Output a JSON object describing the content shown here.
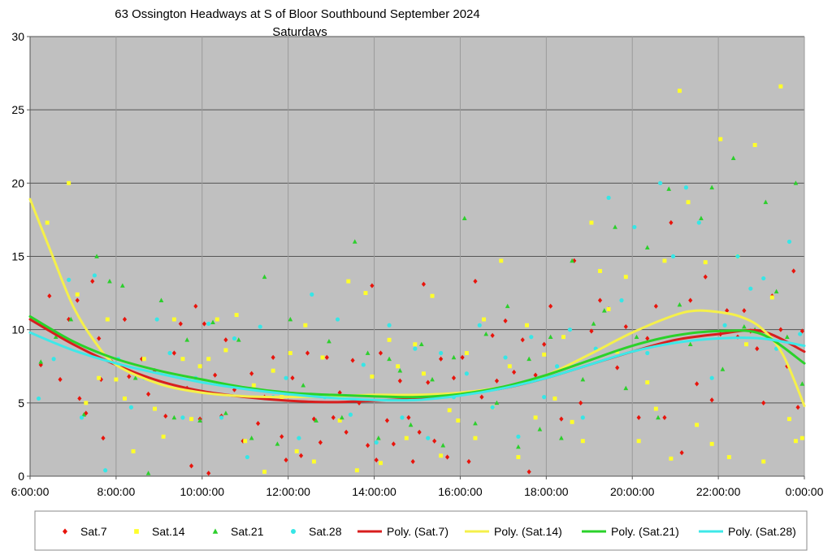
{
  "chart_data": {
    "type": "scatter",
    "title": "63 Ossington Headways at S of Bloor Southbound September 2024",
    "subtitle": "Saturdays",
    "xlabel": "",
    "ylabel": "",
    "x_unit": "hours since 0:00",
    "xlim": [
      6,
      24
    ],
    "ylim": [
      0,
      30
    ],
    "x_ticks": [
      6,
      8,
      10,
      12,
      14,
      16,
      18,
      20,
      22,
      24
    ],
    "x_tick_labels": [
      "6:00:00",
      "8:00:00",
      "10:00:00",
      "12:00:00",
      "14:00:00",
      "16:00:00",
      "18:00:00",
      "20:00:00",
      "22:00:00",
      "0:00:00"
    ],
    "y_ticks": [
      0,
      5,
      10,
      15,
      20,
      25,
      30
    ],
    "y_tick_labels": [
      "0",
      "5",
      "10",
      "15",
      "20",
      "25",
      "30"
    ],
    "grid": true,
    "legend_position": "bottom",
    "plot_background": "#c0c0c0",
    "series": [
      {
        "name": "Sat.7",
        "color": "#e8140c",
        "marker": "diamond",
        "x": [
          6.25,
          6.45,
          6.7,
          6.9,
          7.1,
          7.15,
          7.3,
          7.45,
          7.6,
          7.65,
          7.7,
          7.9,
          8.2,
          8.3,
          8.6,
          8.75,
          8.9,
          9.15,
          9.35,
          9.5,
          9.65,
          9.75,
          9.85,
          9.95,
          10.05,
          10.15,
          10.3,
          10.45,
          10.55,
          10.75,
          10.95,
          11.15,
          11.3,
          11.45,
          11.65,
          11.85,
          11.95,
          12.1,
          12.3,
          12.45,
          12.6,
          12.75,
          12.9,
          13.05,
          13.2,
          13.35,
          13.5,
          13.65,
          13.85,
          13.95,
          14.05,
          14.15,
          14.3,
          14.45,
          14.6,
          14.8,
          14.9,
          15.05,
          15.15,
          15.25,
          15.4,
          15.55,
          15.7,
          15.85,
          16.05,
          16.2,
          16.35,
          16.5,
          16.75,
          16.85,
          17.05,
          17.25,
          17.45,
          17.6,
          17.75,
          17.95,
          18.1,
          18.35,
          18.65,
          18.8,
          19.05,
          19.25,
          19.45,
          19.65,
          19.85,
          20.15,
          20.35,
          20.55,
          20.75,
          20.9,
          21.15,
          21.35,
          21.5,
          21.7,
          21.85,
          22.05,
          22.2,
          22.45,
          22.6,
          22.75,
          22.9,
          23.05,
          23.25,
          23.45,
          23.6,
          23.75,
          23.85,
          23.95
        ],
        "y": [
          7.6,
          12.3,
          6.6,
          10.7,
          12.0,
          5.3,
          4.3,
          13.3,
          9.4,
          6.6,
          2.6,
          7.8,
          10.7,
          6.8,
          8.0,
          5.6,
          7.2,
          4.1,
          8.4,
          10.4,
          6.0,
          0.7,
          11.6,
          3.9,
          10.4,
          0.2,
          6.9,
          4.1,
          9.3,
          5.9,
          2.4,
          7.0,
          3.6,
          5.4,
          8.1,
          2.7,
          1.1,
          6.7,
          1.4,
          8.4,
          3.9,
          2.3,
          8.1,
          4.0,
          5.7,
          3.0,
          7.9,
          5.0,
          2.1,
          13.0,
          1.1,
          8.4,
          3.8,
          2.2,
          6.5,
          4.0,
          1.0,
          3.0,
          13.1,
          6.4,
          2.4,
          8.0,
          1.3,
          6.7,
          8.1,
          1.0,
          13.3,
          5.4,
          9.6,
          6.5,
          10.6,
          7.1,
          9.3,
          0.3,
          6.9,
          9.0,
          11.6,
          3.9,
          14.7,
          5.0,
          9.9,
          12.0,
          11.4,
          7.4,
          10.2,
          4.0,
          9.4,
          11.6,
          4.0,
          17.3,
          1.6,
          12.0,
          6.3,
          13.6,
          5.2,
          9.7,
          11.3,
          9.5,
          11.3,
          9.9,
          8.7,
          5.0,
          12.3,
          10.0,
          7.5,
          14.0,
          4.7,
          9.9
        ]
      },
      {
        "name": "Sat.14",
        "color": "#ffff2a",
        "marker": "square",
        "x": [
          6.4,
          6.9,
          7.1,
          7.3,
          7.6,
          7.8,
          8.0,
          8.2,
          8.4,
          8.65,
          8.9,
          9.1,
          9.35,
          9.55,
          9.75,
          9.95,
          10.15,
          10.35,
          10.55,
          10.8,
          11.0,
          11.2,
          11.45,
          11.65,
          11.85,
          12.05,
          12.2,
          12.4,
          12.6,
          12.8,
          13.0,
          13.2,
          13.4,
          13.6,
          13.8,
          13.95,
          14.15,
          14.35,
          14.55,
          14.75,
          14.95,
          15.15,
          15.35,
          15.55,
          15.75,
          15.95,
          16.15,
          16.35,
          16.55,
          16.75,
          16.95,
          17.15,
          17.35,
          17.55,
          17.75,
          17.95,
          18.2,
          18.4,
          18.6,
          18.85,
          19.05,
          19.25,
          19.45,
          19.65,
          19.85,
          20.15,
          20.35,
          20.55,
          20.75,
          20.9,
          21.1,
          21.3,
          21.5,
          21.7,
          21.85,
          22.05,
          22.25,
          22.45,
          22.65,
          22.85,
          23.05,
          23.25,
          23.45,
          23.65,
          23.8,
          23.95
        ],
        "y": [
          17.3,
          20.0,
          12.4,
          5.0,
          6.7,
          10.7,
          6.6,
          5.3,
          1.7,
          8.0,
          4.6,
          2.7,
          10.7,
          8.0,
          3.9,
          7.5,
          8.0,
          10.7,
          8.6,
          11.0,
          2.4,
          6.2,
          0.3,
          7.2,
          5.4,
          8.4,
          1.7,
          10.3,
          1.0,
          8.1,
          5.5,
          3.8,
          13.3,
          0.4,
          12.5,
          6.8,
          0.9,
          9.3,
          7.5,
          2.6,
          9.0,
          7.0,
          12.3,
          1.4,
          4.5,
          3.8,
          8.4,
          2.6,
          10.7,
          4.7,
          14.7,
          7.5,
          1.3,
          10.3,
          4.0,
          8.3,
          5.3,
          9.5,
          3.7,
          2.4,
          17.3,
          14.0,
          11.4,
          8.5,
          13.6,
          2.4,
          6.4,
          4.6,
          14.7,
          1.2,
          26.3,
          18.7,
          3.5,
          14.6,
          2.2,
          23.0,
          1.3,
          15.0,
          9.0,
          22.6,
          1.0,
          12.2,
          26.6,
          3.9,
          2.4,
          2.6
        ]
      },
      {
        "name": "Sat.21",
        "color": "#2ccf2c",
        "marker": "triangle",
        "x": [
          6.25,
          6.6,
          6.95,
          7.25,
          7.55,
          7.85,
          8.15,
          8.45,
          8.75,
          9.05,
          9.35,
          9.65,
          9.95,
          10.25,
          10.55,
          10.85,
          11.15,
          11.45,
          11.75,
          12.05,
          12.35,
          12.65,
          12.95,
          13.25,
          13.55,
          13.85,
          14.1,
          14.35,
          14.6,
          14.85,
          15.1,
          15.35,
          15.6,
          15.85,
          16.1,
          16.35,
          16.6,
          16.85,
          17.1,
          17.35,
          17.6,
          17.85,
          18.1,
          18.35,
          18.6,
          18.85,
          19.1,
          19.35,
          19.6,
          19.85,
          20.1,
          20.35,
          20.6,
          20.85,
          21.1,
          21.35,
          21.6,
          21.85,
          22.1,
          22.35,
          22.6,
          22.85,
          23.1,
          23.35,
          23.6,
          23.8,
          23.95
        ],
        "y": [
          7.8,
          9.5,
          10.7,
          4.2,
          15.0,
          13.3,
          13.0,
          6.7,
          0.2,
          12.0,
          4.0,
          9.3,
          3.8,
          10.5,
          4.3,
          9.3,
          2.6,
          13.6,
          2.2,
          10.7,
          6.2,
          3.8,
          9.2,
          4.0,
          16.0,
          8.4,
          2.6,
          8.0,
          7.2,
          3.5,
          9.0,
          6.6,
          2.1,
          8.1,
          17.6,
          3.6,
          9.7,
          5.0,
          11.6,
          2.0,
          8.0,
          3.2,
          9.5,
          2.6,
          14.7,
          6.6,
          10.4,
          11.3,
          17.0,
          6.0,
          9.5,
          15.6,
          4.0,
          19.6,
          11.7,
          9.0,
          17.6,
          19.7,
          7.3,
          21.7,
          10.2,
          10.0,
          18.7,
          12.6,
          9.5,
          20.0,
          6.3
        ]
      },
      {
        "name": "Sat.28",
        "color": "#36e6e6",
        "marker": "circle",
        "x": [
          6.2,
          6.55,
          6.9,
          7.2,
          7.5,
          7.75,
          8.05,
          8.35,
          8.65,
          8.95,
          9.25,
          9.55,
          9.85,
          10.15,
          10.45,
          10.75,
          11.05,
          11.35,
          11.65,
          11.95,
          12.25,
          12.55,
          12.85,
          13.15,
          13.45,
          13.75,
          14.05,
          14.35,
          14.65,
          14.95,
          15.25,
          15.55,
          15.85,
          16.15,
          16.45,
          16.75,
          17.05,
          17.35,
          17.65,
          17.95,
          18.25,
          18.55,
          18.85,
          19.15,
          19.45,
          19.75,
          20.05,
          20.35,
          20.65,
          20.95,
          21.25,
          21.55,
          21.85,
          22.15,
          22.45,
          22.75,
          23.05,
          23.35,
          23.65,
          23.9
        ],
        "y": [
          5.3,
          8.0,
          13.4,
          4.0,
          13.7,
          0.4,
          8.0,
          4.7,
          6.7,
          10.7,
          8.4,
          4.0,
          6.7,
          10.4,
          4.0,
          9.4,
          1.3,
          10.2,
          5.4,
          6.7,
          2.6,
          12.4,
          5.4,
          10.7,
          4.2,
          7.6,
          2.3,
          10.3,
          4.0,
          8.7,
          2.6,
          8.4,
          5.4,
          7.0,
          10.3,
          4.7,
          8.1,
          2.7,
          9.5,
          5.4,
          7.5,
          10.0,
          4.0,
          8.7,
          19.0,
          12.0,
          17.0,
          8.4,
          20.0,
          15.0,
          19.7,
          17.3,
          6.7,
          10.3,
          15.0,
          12.8,
          13.5,
          8.7,
          16.0,
          9.7
        ]
      }
    ],
    "trendlines": [
      {
        "name": "Poly. (Sat.7)",
        "color": "#d81e1e",
        "x": [
          6,
          7,
          8,
          9,
          10,
          11,
          12,
          13,
          14,
          15,
          16,
          17,
          18,
          19,
          20,
          21,
          22,
          23,
          24
        ],
        "y": [
          10.7,
          9.0,
          7.6,
          6.5,
          5.8,
          5.4,
          5.15,
          5.05,
          5.15,
          5.3,
          5.6,
          6.0,
          6.7,
          7.6,
          8.5,
          9.3,
          9.7,
          9.9,
          8.5
        ]
      },
      {
        "name": "Poly. (Sat.14)",
        "color": "#f5f04a",
        "x": [
          6,
          6.5,
          7,
          7.5,
          8,
          9,
          10,
          11,
          12,
          13,
          14,
          15,
          16,
          17,
          18,
          19,
          20,
          21,
          21.5,
          22,
          22.5,
          23,
          23.5,
          24
        ],
        "y": [
          18.9,
          15.2,
          11.6,
          9.2,
          7.6,
          6.3,
          5.7,
          5.45,
          5.4,
          5.45,
          5.55,
          5.55,
          5.7,
          6.1,
          6.9,
          8.3,
          9.8,
          11.0,
          11.3,
          11.2,
          10.9,
          10.1,
          8.3,
          4.8
        ]
      },
      {
        "name": "Poly. (Sat.21)",
        "color": "#2ad22a",
        "x": [
          6,
          7,
          8,
          9,
          10,
          11,
          12,
          13,
          14,
          15,
          16,
          17,
          18,
          19,
          20,
          21,
          22,
          23,
          24
        ],
        "y": [
          10.9,
          9.2,
          8.0,
          7.2,
          6.6,
          6.05,
          5.7,
          5.55,
          5.45,
          5.4,
          5.6,
          6.1,
          6.9,
          7.9,
          8.9,
          9.6,
          9.9,
          9.7,
          7.7
        ]
      },
      {
        "name": "Poly. (Sat.28)",
        "color": "#3ee8e8",
        "x": [
          6,
          7,
          8,
          9,
          10,
          11,
          12,
          13,
          14,
          15,
          16,
          17,
          18,
          19,
          20,
          21,
          22,
          23,
          24
        ],
        "y": [
          9.8,
          8.6,
          7.7,
          7.0,
          6.4,
          5.95,
          5.6,
          5.35,
          5.2,
          5.2,
          5.5,
          6.0,
          6.7,
          7.6,
          8.5,
          9.1,
          9.4,
          9.4,
          8.9
        ]
      }
    ]
  }
}
